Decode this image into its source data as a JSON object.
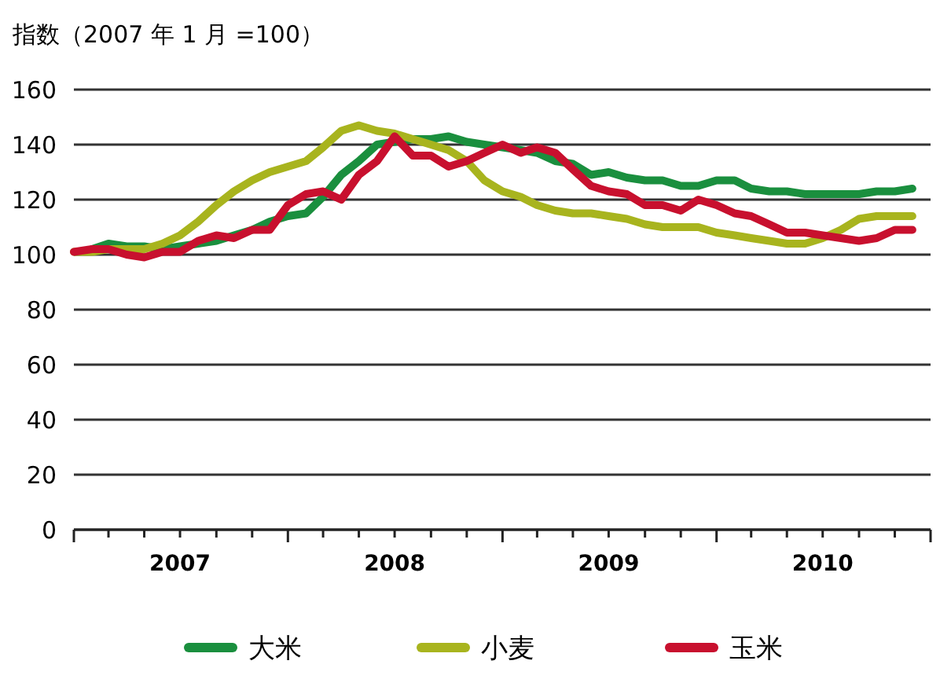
{
  "chart_data": {
    "type": "line",
    "ylabel": "指数（2007 年 1 月 =100）",
    "x": [
      "2007-01",
      "2007-02",
      "2007-03",
      "2007-04",
      "2007-05",
      "2007-06",
      "2007-07",
      "2007-08",
      "2007-09",
      "2007-10",
      "2007-11",
      "2007-12",
      "2008-01",
      "2008-02",
      "2008-03",
      "2008-04",
      "2008-05",
      "2008-06",
      "2008-07",
      "2008-08",
      "2008-09",
      "2008-10",
      "2008-11",
      "2008-12",
      "2009-01",
      "2009-02",
      "2009-03",
      "2009-04",
      "2009-05",
      "2009-06",
      "2009-07",
      "2009-08",
      "2009-09",
      "2009-10",
      "2009-11",
      "2009-12",
      "2010-01",
      "2010-02",
      "2010-03",
      "2010-04",
      "2010-05",
      "2010-06",
      "2010-07",
      "2010-08",
      "2010-09",
      "2010-10",
      "2010-11",
      "2010-12"
    ],
    "series": [
      {
        "name": "大米",
        "color": "#1a8f3e",
        "values": [
          null,
          102,
          104,
          103,
          103,
          102,
          103,
          104,
          105,
          107,
          109,
          112,
          114,
          115,
          121,
          129,
          134,
          140,
          141,
          142,
          142,
          143,
          141,
          140,
          139,
          138,
          137,
          134,
          133,
          129,
          130,
          128,
          127,
          127,
          125,
          125,
          127,
          127,
          124,
          123,
          123,
          122,
          122,
          122,
          122,
          123,
          123,
          124
        ]
      },
      {
        "name": "小麦",
        "color": "#a8b41e",
        "values": [
          101,
          101,
          102,
          102,
          102,
          104,
          107,
          112,
          118,
          123,
          127,
          130,
          132,
          134,
          139,
          145,
          147,
          145,
          144,
          142,
          140,
          138,
          134,
          127,
          123,
          121,
          118,
          116,
          115,
          115,
          114,
          113,
          111,
          110,
          110,
          110,
          108,
          107,
          106,
          105,
          104,
          104,
          106,
          109,
          113,
          114,
          114,
          114
        ]
      },
      {
        "name": "玉米",
        "color": "#c8102e",
        "values": [
          101,
          102,
          102,
          100,
          99,
          101,
          101,
          105,
          107,
          106,
          109,
          109,
          118,
          122,
          123,
          120,
          129,
          134,
          143,
          136,
          136,
          132,
          134,
          137,
          140,
          137,
          139,
          137,
          131,
          125,
          123,
          122,
          118,
          118,
          116,
          120,
          118,
          115,
          114,
          111,
          108,
          108,
          107,
          106,
          105,
          106,
          109,
          109
        ]
      }
    ],
    "xlim": [
      "2007-01",
      "2011-01"
    ],
    "xticks": [
      {
        "value": "2007-01",
        "label": null
      },
      {
        "value": "2007-03",
        "label": null
      },
      {
        "value": "2007-05",
        "label": null
      },
      {
        "value": "2007-07",
        "label": "2007"
      },
      {
        "value": "2007-09",
        "label": null
      },
      {
        "value": "2007-11",
        "label": null
      },
      {
        "value": "2008-01",
        "label": null
      },
      {
        "value": "2008-03",
        "label": null
      },
      {
        "value": "2008-05",
        "label": null
      },
      {
        "value": "2008-07",
        "label": "2008"
      },
      {
        "value": "2008-09",
        "label": null
      },
      {
        "value": "2008-11",
        "label": null
      },
      {
        "value": "2009-01",
        "label": null
      },
      {
        "value": "2009-03",
        "label": null
      },
      {
        "value": "2009-05",
        "label": null
      },
      {
        "value": "2009-07",
        "label": "2009"
      },
      {
        "value": "2009-09",
        "label": null
      },
      {
        "value": "2009-11",
        "label": null
      },
      {
        "value": "2010-01",
        "label": null
      },
      {
        "value": "2010-03",
        "label": null
      },
      {
        "value": "2010-05",
        "label": null
      },
      {
        "value": "2010-07",
        "label": "2010"
      },
      {
        "value": "2010-09",
        "label": null
      },
      {
        "value": "2010-11",
        "label": null
      },
      {
        "value": "2011-01",
        "label": null
      }
    ],
    "ylim": [
      0,
      160
    ],
    "yticks": [
      0,
      20,
      40,
      60,
      80,
      100,
      120,
      140,
      160
    ],
    "grid": "y",
    "legend": "bottom",
    "marker": "none",
    "line_style": "solid"
  }
}
